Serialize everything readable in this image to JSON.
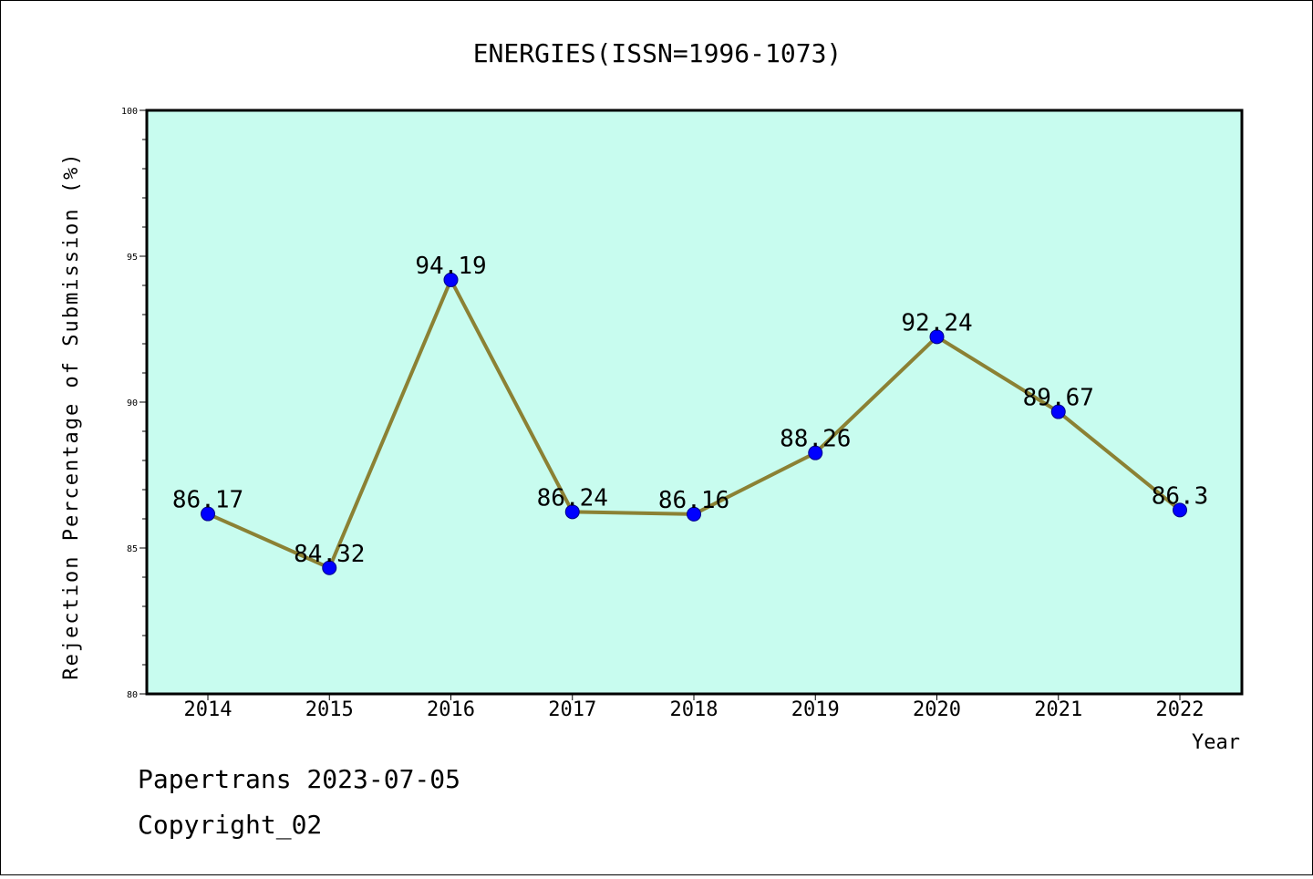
{
  "chart_data": {
    "type": "line",
    "title": "ENERGIES(ISSN=1996-1073)",
    "xlabel": "Year",
    "ylabel": "Rejection Percentage of Submission (%)",
    "categories": [
      "2014",
      "2015",
      "2016",
      "2017",
      "2018",
      "2019",
      "2020",
      "2021",
      "2022"
    ],
    "values": [
      86.17,
      84.32,
      94.19,
      86.24,
      86.16,
      88.26,
      92.24,
      89.67,
      86.3
    ],
    "data_labels": [
      "86.17",
      "84.32",
      "94.19",
      "86.24",
      "86.16",
      "88.26",
      "92.24",
      "89.67",
      "86.3"
    ],
    "ylim": [
      80,
      100
    ],
    "yticks": [
      "80",
      "85",
      "90",
      "95",
      "100"
    ],
    "grid": false,
    "colors": {
      "plot_background": "#c8fcef",
      "line": "#8b8134",
      "marker": "#0000ff"
    }
  },
  "footer": {
    "line1": "Papertrans 2023-07-05",
    "line2": "Copyright_02"
  }
}
